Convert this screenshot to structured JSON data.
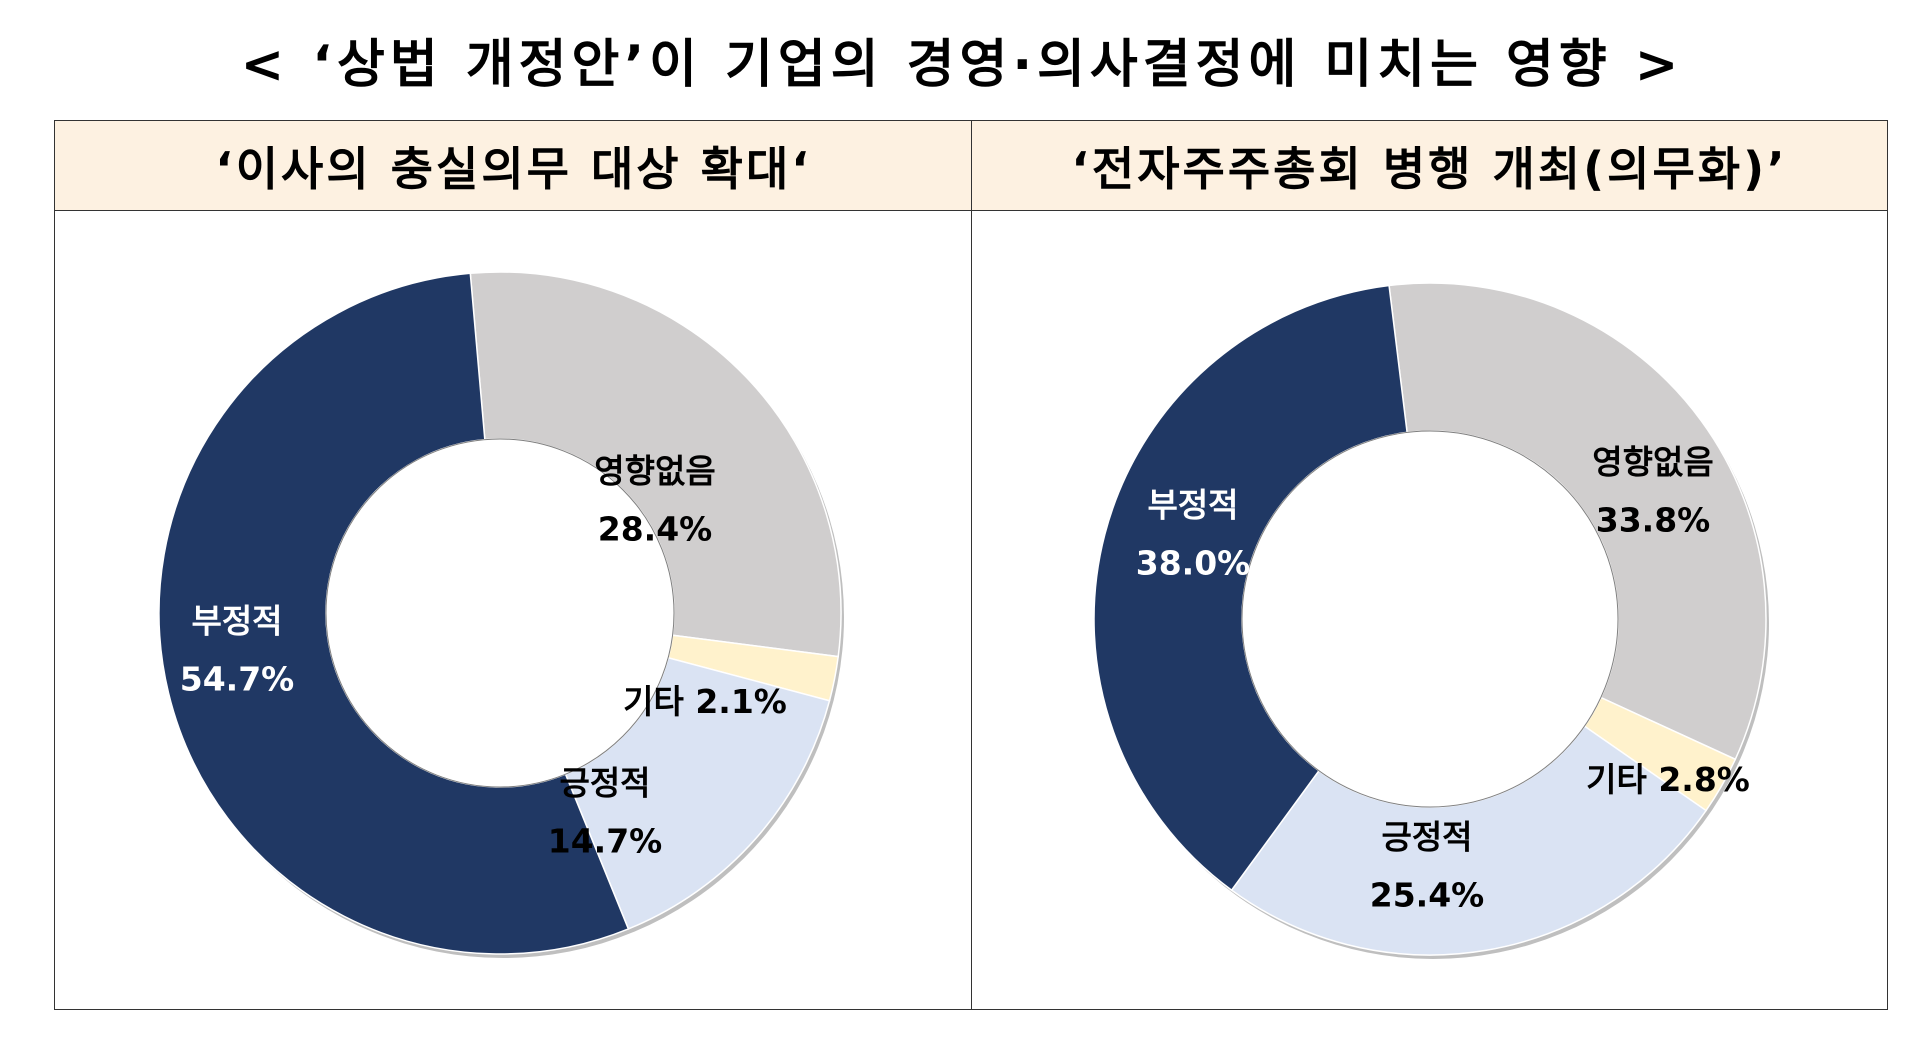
{
  "title": "< ‘상법 개정안’이 기업의 경영·의사결정에 미치는 영향 >",
  "chart_data": [
    {
      "type": "pie",
      "title": "‘이사의 충실의무 대상 확대‘",
      "slices": [
        {
          "label": "영향없음",
          "value": 28.4,
          "value_text": "28.4%",
          "color": "#d0cece"
        },
        {
          "label": "기타",
          "value": 2.1,
          "value_text": "2.1%",
          "color": "#fff2cc"
        },
        {
          "label": "긍정적",
          "value": 14.7,
          "value_text": "14.7%",
          "color": "#dae3f3"
        },
        {
          "label": "부정적",
          "value": 54.7,
          "value_text": "54.7%",
          "color": "#203864"
        }
      ]
    },
    {
      "type": "pie",
      "title": "‘전자주주총회 병행 개최(의무화)’",
      "slices": [
        {
          "label": "영향없음",
          "value": 33.8,
          "value_text": "33.8%",
          "color": "#d0cece"
        },
        {
          "label": "기타",
          "value": 2.8,
          "value_text": "2.8%",
          "color": "#fff2cc"
        },
        {
          "label": "긍정적",
          "value": 25.4,
          "value_text": "25.4%",
          "color": "#dae3f3"
        },
        {
          "label": "부정적",
          "value": 38.0,
          "value_text": "38.0%",
          "color": "#203864"
        }
      ]
    }
  ]
}
